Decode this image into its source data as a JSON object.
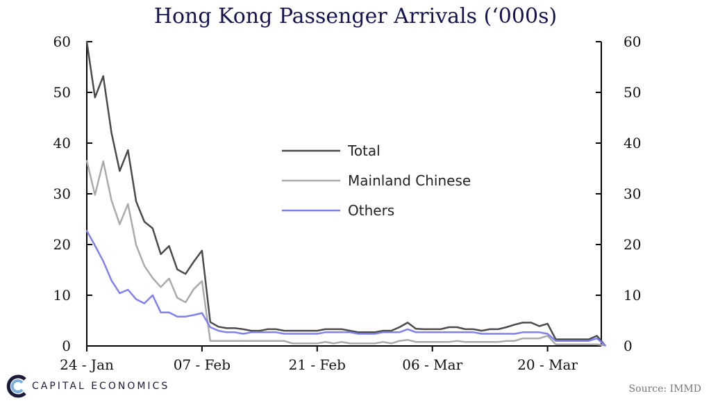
{
  "chart_data": {
    "type": "line",
    "title": "Hong Kong Passenger Arrivals (‘000s)",
    "xlabel": "",
    "ylabel": "",
    "x_ticks": [
      "24 - Jan",
      "07 - Feb",
      "21 - Feb",
      "06 - Mar",
      "20 - Mar"
    ],
    "y_ticks_left": [
      0,
      10,
      20,
      30,
      40,
      50,
      60
    ],
    "y_ticks_right": [
      0,
      10,
      20,
      30,
      40,
      50,
      60
    ],
    "ylim": [
      0,
      60
    ],
    "x_start": "2020-01-24",
    "x_end": "2020-03-26",
    "grid": false,
    "legend_position": "center",
    "series": [
      {
        "name": "Total",
        "color": "#4a4a4a",
        "values": [
          60,
          49,
          53.2,
          42,
          34.5,
          38.6,
          28.5,
          24.5,
          23.2,
          18.1,
          19.7,
          15.1,
          14.2,
          16.6,
          18.8,
          4.7,
          3.8,
          3.5,
          3.5,
          3.3,
          3.0,
          3.0,
          3.3,
          3.3,
          3.0,
          3.0,
          3.0,
          3.0,
          3.0,
          3.3,
          3.3,
          3.3,
          3.0,
          2.7,
          2.7,
          2.7,
          3.0,
          3.0,
          3.7,
          4.6,
          3.4,
          3.3,
          3.3,
          3.3,
          3.7,
          3.7,
          3.3,
          3.3,
          3.0,
          3.3,
          3.3,
          3.7,
          4.2,
          4.6,
          4.6,
          3.9,
          4.4,
          1.3,
          1.3,
          1.3,
          1.3,
          1.3,
          2.0,
          0.1
        ]
      },
      {
        "name": "Mainland Chinese",
        "color": "#aaaaaa",
        "values": [
          36.5,
          29.8,
          36.4,
          28.7,
          24.0,
          28.0,
          19.9,
          15.8,
          13.4,
          11.6,
          13.3,
          9.5,
          8.6,
          11.2,
          12.8,
          1.0,
          1.0,
          1.0,
          1.0,
          1.0,
          1.0,
          1.0,
          1.0,
          1.0,
          1.0,
          0.5,
          0.5,
          0.5,
          0.5,
          0.8,
          0.5,
          0.8,
          0.5,
          0.5,
          0.5,
          0.5,
          0.8,
          0.5,
          1.0,
          1.2,
          0.8,
          0.8,
          0.8,
          0.8,
          0.8,
          1.0,
          0.8,
          0.8,
          0.8,
          0.8,
          0.8,
          1.0,
          1.0,
          1.5,
          1.5,
          1.5,
          2.0,
          0.3,
          0.3,
          0.3,
          0.3,
          0.3,
          0.3,
          0.1
        ]
      },
      {
        "name": "Others",
        "color": "#8080f0",
        "values": [
          22.7,
          19.8,
          16.7,
          12.9,
          10.4,
          11.1,
          9.2,
          8.4,
          10.0,
          6.6,
          6.6,
          5.8,
          5.8,
          6.1,
          6.5,
          3.7,
          3.0,
          2.7,
          2.7,
          2.4,
          2.7,
          2.7,
          2.7,
          2.7,
          2.4,
          2.4,
          2.4,
          2.4,
          2.4,
          2.7,
          2.7,
          2.7,
          2.7,
          2.4,
          2.4,
          2.4,
          2.7,
          2.7,
          2.7,
          3.3,
          2.7,
          2.7,
          2.7,
          2.7,
          2.7,
          2.7,
          2.7,
          2.7,
          2.4,
          2.4,
          2.4,
          2.4,
          2.4,
          2.7,
          2.7,
          2.7,
          2.4,
          1.0,
          1.0,
          1.0,
          1.0,
          1.0,
          1.5,
          0.1
        ]
      }
    ]
  },
  "brand": {
    "logo_text": "CAPITAL ECONOMICS",
    "logo_icon": "ce-logo-icon"
  },
  "source": "Source: IMMD"
}
